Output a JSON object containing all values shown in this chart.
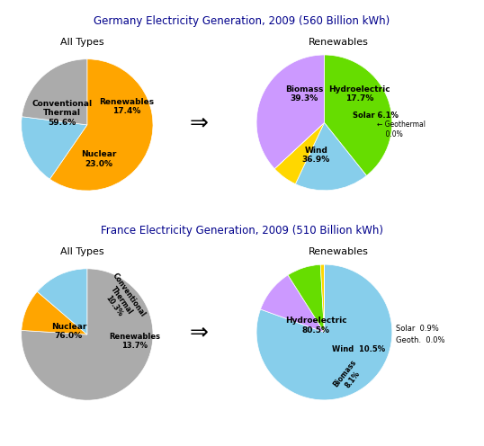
{
  "germany_title": "Germany Electricity Generation, 2009 (560 Billion kWh)",
  "france_title": "France Electricity Generation, 2009 (510 Billion kWh)",
  "subtitle_all": "All Types",
  "subtitle_renewables": "Renewables",
  "germany_all_values": [
    59.6,
    17.4,
    23.0
  ],
  "germany_all_colors": [
    "#FFA500",
    "#87CEEB",
    "#ABABAB"
  ],
  "germany_all_startangle": 90,
  "germany_ren_values": [
    39.3,
    17.7,
    6.1,
    0.001,
    36.9
  ],
  "germany_ren_colors": [
    "#66DD00",
    "#87CEEB",
    "#FFD700",
    "#D2B48C",
    "#CC99FF"
  ],
  "germany_ren_startangle": 90,
  "france_all_values": [
    76.0,
    10.3,
    13.7
  ],
  "france_all_colors": [
    "#ABABAB",
    "#FFA500",
    "#87CEEB"
  ],
  "france_all_startangle": 90,
  "france_ren_values": [
    80.5,
    10.5,
    8.1,
    0.9,
    0.001
  ],
  "france_ren_colors": [
    "#87CEEB",
    "#CC99FF",
    "#66DD00",
    "#FFD700",
    "#D2B48C"
  ],
  "france_ren_startangle": 90,
  "background_color": "#FFFFFF",
  "title_color": "#00008B",
  "label_color": "#000000"
}
